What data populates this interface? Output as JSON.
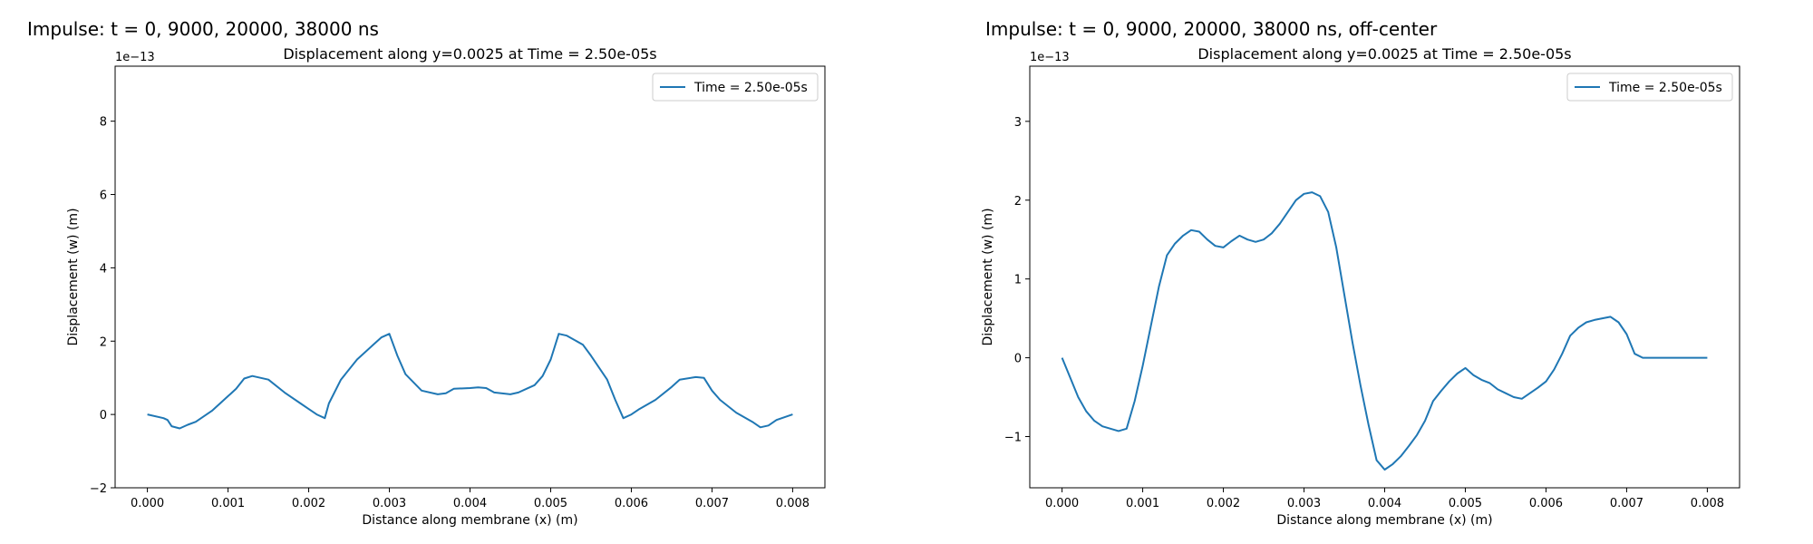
{
  "panels": [
    {
      "suptitle": "Impulse: t = 0, 9000, 20000, 38000 ns"
    },
    {
      "suptitle": "Impulse: t = 0, 9000, 20000, 38000 ns, off-center"
    }
  ],
  "chart_data": [
    {
      "type": "line",
      "title": "Displacement along y=0.0025 at Time = 2.50e-05s",
      "xlabel": "Distance along membrane (x) (m)",
      "ylabel": "Displacement (w) (m)",
      "offset_text": "1e−13",
      "xlim": [
        -0.0004,
        0.0084
      ],
      "ylim": [
        -2,
        9.5
      ],
      "xticks": [
        0,
        0.001,
        0.002,
        0.003,
        0.004,
        0.005,
        0.006,
        0.007,
        0.008
      ],
      "xtick_labels": [
        "0.000",
        "0.001",
        "0.002",
        "0.003",
        "0.004",
        "0.005",
        "0.006",
        "0.007",
        "0.008"
      ],
      "yticks": [
        -2,
        0,
        2,
        4,
        6,
        8
      ],
      "ytick_labels": [
        "−2",
        "0",
        "2",
        "4",
        "6",
        "8"
      ],
      "grid": false,
      "legend": "upper right",
      "line_color": "#1f77b4",
      "series": [
        {
          "name": "Time = 2.50e-05s",
          "x": [
            0,
            0.0002,
            0.00025,
            0.0003,
            0.0004,
            0.0005,
            0.0006,
            0.0008,
            0.0009,
            0.001,
            0.0011,
            0.0012,
            0.0013,
            0.0015,
            0.0017,
            0.0019,
            0.002,
            0.0021,
            0.0022,
            0.00225,
            0.0024,
            0.0026,
            0.0028,
            0.0029,
            0.003,
            0.0031,
            0.0032,
            0.0034,
            0.0036,
            0.0037,
            0.0038,
            0.004,
            0.0041,
            0.0042,
            0.0043,
            0.0045,
            0.0046,
            0.0047,
            0.0048,
            0.0049,
            0.005,
            0.0051,
            0.0052,
            0.0054,
            0.0055,
            0.0057,
            0.0058,
            0.0059,
            0.006,
            0.0061,
            0.0063,
            0.0065,
            0.0066,
            0.0068,
            0.0069,
            0.007,
            0.0071,
            0.0073,
            0.0075,
            0.0076,
            0.0077,
            0.0078,
            0.008
          ],
          "y": [
            0,
            -0.1,
            -0.15,
            -0.32,
            -0.38,
            -0.28,
            -0.2,
            0.1,
            0.3,
            0.5,
            0.7,
            0.98,
            1.05,
            0.95,
            0.6,
            0.3,
            0.15,
            0.0,
            -0.1,
            0.3,
            0.95,
            1.5,
            1.9,
            2.1,
            2.2,
            1.6,
            1.1,
            0.65,
            0.55,
            0.58,
            0.7,
            0.72,
            0.74,
            0.72,
            0.6,
            0.55,
            0.6,
            0.7,
            0.8,
            1.05,
            1.5,
            2.2,
            2.15,
            1.9,
            1.6,
            0.95,
            0.4,
            -0.1,
            0.0,
            0.15,
            0.4,
            0.75,
            0.95,
            1.02,
            1.0,
            0.65,
            0.4,
            0.05,
            -0.2,
            -0.35,
            -0.3,
            -0.15,
            0
          ]
        }
      ]
    },
    {
      "type": "line",
      "title": "Displacement along y=0.0025 at Time = 2.50e-05s",
      "xlabel": "Distance along membrane (x) (m)",
      "ylabel": "Displacement (w) (m)",
      "offset_text": "1e−13",
      "xlim": [
        -0.0004,
        0.0084
      ],
      "ylim": [
        -1.65,
        3.7
      ],
      "xticks": [
        0,
        0.001,
        0.002,
        0.003,
        0.004,
        0.005,
        0.006,
        0.007,
        0.008
      ],
      "xtick_labels": [
        "0.000",
        "0.001",
        "0.002",
        "0.003",
        "0.004",
        "0.005",
        "0.006",
        "0.007",
        "0.008"
      ],
      "yticks": [
        -1,
        0,
        1,
        2,
        3
      ],
      "ytick_labels": [
        "−1",
        "0",
        "1",
        "2",
        "3"
      ],
      "grid": false,
      "legend": "upper right",
      "line_color": "#1f77b4",
      "series": [
        {
          "name": "Time = 2.50e-05s",
          "x": [
            0,
            0.0001,
            0.0002,
            0.0003,
            0.0004,
            0.0005,
            0.0006,
            0.0007,
            0.0008,
            0.0009,
            0.001,
            0.0011,
            0.0012,
            0.0013,
            0.0014,
            0.0015,
            0.0016,
            0.0017,
            0.0018,
            0.0019,
            0.002,
            0.0021,
            0.0022,
            0.0023,
            0.0024,
            0.0025,
            0.0026,
            0.0027,
            0.0028,
            0.0029,
            0.003,
            0.0031,
            0.0032,
            0.0033,
            0.0034,
            0.0035,
            0.0036,
            0.0037,
            0.0038,
            0.0039,
            0.004,
            0.0041,
            0.0042,
            0.0043,
            0.0044,
            0.0045,
            0.0046,
            0.0047,
            0.0048,
            0.0049,
            0.005,
            0.0051,
            0.0052,
            0.0053,
            0.0054,
            0.0055,
            0.0056,
            0.0057,
            0.0058,
            0.0059,
            0.006,
            0.0061,
            0.0062,
            0.0063,
            0.0064,
            0.0065,
            0.0066,
            0.0067,
            0.0068,
            0.0069,
            0.007,
            0.0071,
            0.0072,
            0.0073,
            0.0074,
            0.0075,
            0.0076,
            0.0077,
            0.0078,
            0.0079,
            0.008
          ],
          "y": [
            0,
            -0.25,
            -0.5,
            -0.68,
            -0.8,
            -0.87,
            -0.9,
            -0.93,
            -0.9,
            -0.55,
            -0.1,
            0.4,
            0.9,
            1.3,
            1.45,
            1.55,
            1.62,
            1.6,
            1.5,
            1.42,
            1.4,
            1.48,
            1.55,
            1.5,
            1.47,
            1.5,
            1.58,
            1.7,
            1.85,
            2.0,
            2.08,
            2.1,
            2.05,
            1.85,
            1.4,
            0.8,
            0.2,
            -0.35,
            -0.85,
            -1.3,
            -1.42,
            -1.35,
            -1.25,
            -1.12,
            -0.98,
            -0.8,
            -0.55,
            -0.42,
            -0.3,
            -0.2,
            -0.13,
            -0.22,
            -0.28,
            -0.32,
            -0.4,
            -0.45,
            -0.5,
            -0.52,
            -0.45,
            -0.38,
            -0.3,
            -0.15,
            0.05,
            0.28,
            0.38,
            0.45,
            0.48,
            0.5,
            0.52,
            0.45,
            0.3,
            0.05,
            0.0,
            0.0,
            0.0,
            0.0,
            0.0,
            0.0,
            0.0,
            0.0,
            0.0
          ]
        }
      ]
    }
  ]
}
